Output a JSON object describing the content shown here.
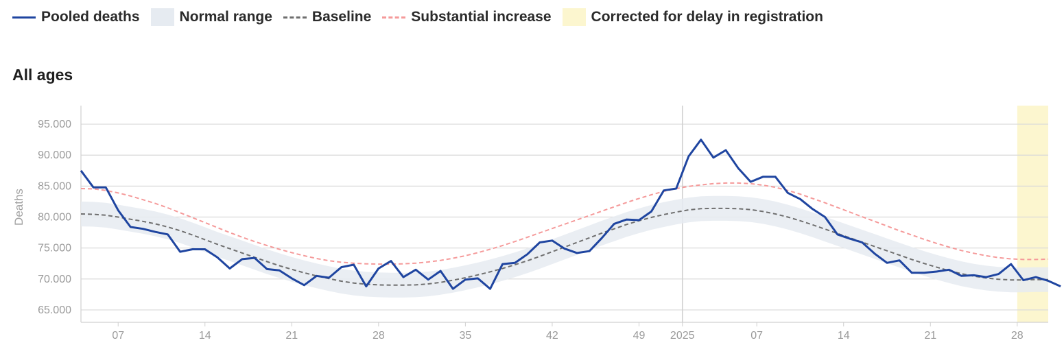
{
  "legend": {
    "pooled_deaths": "Pooled deaths",
    "normal_range": "Normal range",
    "baseline": "Baseline",
    "substantial_increase": "Substantial increase",
    "corrected": "Corrected for delay in registration"
  },
  "colors": {
    "pooled": "#1f45a0",
    "band": "#e6ebf1",
    "baseline": "#6f6f6f",
    "substantial": "#f59a9a",
    "corrected": "#fcf6cf",
    "grid": "#d9d9d9"
  },
  "subtitle": "All ages",
  "chart_data": {
    "type": "line",
    "title": "All ages",
    "xlabel": "",
    "ylabel": "Deaths",
    "ylim": [
      63000,
      98000
    ],
    "xlim": [
      0,
      78
    ],
    "y_ticks": [
      65000,
      70000,
      75000,
      80000,
      85000,
      90000,
      95000
    ],
    "y_tick_labels": [
      "65.000",
      "70.000",
      "75.000",
      "80.000",
      "85.000",
      "90.000",
      "95.000"
    ],
    "x_ticks": [
      {
        "x": 3,
        "label": "07"
      },
      {
        "x": 10,
        "label": "14"
      },
      {
        "x": 17,
        "label": "21"
      },
      {
        "x": 24,
        "label": "28"
      },
      {
        "x": 31,
        "label": "35"
      },
      {
        "x": 38,
        "label": "42"
      },
      {
        "x": 45,
        "label": "49"
      },
      {
        "x": 48.5,
        "label": "2025"
      },
      {
        "x": 54.5,
        "label": "07"
      },
      {
        "x": 61.5,
        "label": "14"
      },
      {
        "x": 68.5,
        "label": "21"
      },
      {
        "x": 75.5,
        "label": "28"
      }
    ],
    "year_line_x": 48.5,
    "corrected_range": [
      75.5,
      78.5
    ],
    "series": [
      {
        "name": "Pooled deaths",
        "values": [
          87500,
          84800,
          84800,
          81100,
          78400,
          78100,
          77600,
          77200,
          74400,
          74800,
          74800,
          73500,
          71700,
          73200,
          73400,
          71600,
          71400,
          70100,
          69000,
          70500,
          70200,
          71900,
          72300,
          68800,
          71700,
          72900,
          70300,
          71500,
          69900,
          71300,
          68400,
          69900,
          70100,
          68400,
          72400,
          72600,
          74000,
          75900,
          76200,
          74900,
          74200,
          74500,
          76600,
          78900,
          79600,
          79500,
          80900,
          84300,
          84600,
          89800,
          92500,
          89600,
          90800,
          87900,
          85700,
          86500,
          86500,
          83900,
          82900,
          81300,
          80000,
          77200,
          76500,
          75900,
          74100,
          72600,
          73000,
          71000,
          71000,
          71200,
          71500,
          70500,
          70600,
          70300,
          70800,
          72400,
          69800,
          70300,
          69700,
          68800
        ]
      },
      {
        "name": "Baseline",
        "values": [
          80500,
          80450,
          80300,
          80000,
          79650,
          79300,
          78900,
          78400,
          77800,
          77100,
          76350,
          75600,
          74900,
          74200,
          73500,
          72800,
          72150,
          71550,
          71000,
          70500,
          70050,
          69650,
          69350,
          69150,
          69050,
          69000,
          69000,
          69050,
          69200,
          69450,
          69800,
          70200,
          70650,
          71150,
          71700,
          72300,
          72950,
          73650,
          74400,
          75150,
          75900,
          76650,
          77400,
          78100,
          78800,
          79400,
          79950,
          80400,
          80800,
          81150,
          81350,
          81400,
          81400,
          81350,
          81200,
          80900,
          80500,
          80000,
          79400,
          78750,
          78050,
          77350,
          76650,
          75950,
          75250,
          74550,
          73850,
          73150,
          72500,
          71900,
          71350,
          70850,
          70450,
          70150,
          69950,
          69850,
          69850,
          69900,
          69900
        ]
      },
      {
        "name": "Normal range upper",
        "values": [
          82500,
          82450,
          82300,
          82000,
          81650,
          81300,
          80900,
          80400,
          79800,
          79100,
          78350,
          77600,
          76900,
          76200,
          75500,
          74800,
          74150,
          73550,
          73000,
          72500,
          72050,
          71650,
          71350,
          71150,
          71050,
          71000,
          71000,
          71050,
          71200,
          71450,
          71800,
          72200,
          72650,
          73150,
          73700,
          74300,
          74950,
          75650,
          76400,
          77150,
          77900,
          78650,
          79400,
          80100,
          80800,
          81400,
          81950,
          82400,
          82800,
          83150,
          83350,
          83400,
          83400,
          83350,
          83200,
          82900,
          82500,
          82000,
          81400,
          80750,
          80050,
          79350,
          78650,
          77950,
          77250,
          76550,
          75850,
          75150,
          74500,
          73900,
          73350,
          72850,
          72450,
          72150,
          71950,
          71850,
          71850,
          71900,
          71900
        ]
      },
      {
        "name": "Normal range lower",
        "values": [
          78500,
          78450,
          78300,
          78000,
          77650,
          77300,
          76900,
          76400,
          75800,
          75100,
          74350,
          73600,
          72900,
          72200,
          71500,
          70800,
          70150,
          69550,
          69000,
          68500,
          68050,
          67650,
          67350,
          67150,
          67050,
          67000,
          67000,
          67050,
          67200,
          67450,
          67800,
          68200,
          68650,
          69150,
          69700,
          70300,
          70950,
          71650,
          72400,
          73150,
          73900,
          74650,
          75400,
          76100,
          76800,
          77400,
          77950,
          78400,
          78800,
          79150,
          79350,
          79400,
          79400,
          79350,
          79200,
          78900,
          78500,
          78000,
          77400,
          76750,
          76050,
          75350,
          74650,
          73950,
          73250,
          72550,
          71850,
          71150,
          70500,
          69900,
          69350,
          68850,
          68450,
          68150,
          67950,
          67850,
          67850,
          67900,
          67900
        ]
      },
      {
        "name": "Substantial increase",
        "values": [
          84600,
          84550,
          84300,
          83900,
          83400,
          82800,
          82200,
          81500,
          80700,
          79900,
          79100,
          78300,
          77500,
          76750,
          76050,
          75400,
          74800,
          74250,
          73750,
          73300,
          72950,
          72700,
          72550,
          72450,
          72400,
          72400,
          72450,
          72550,
          72750,
          73000,
          73350,
          73750,
          74250,
          74800,
          75400,
          76050,
          76750,
          77450,
          78150,
          78850,
          79550,
          80250,
          80950,
          81650,
          82350,
          83000,
          83600,
          84150,
          84600,
          84950,
          85200,
          85400,
          85500,
          85500,
          85400,
          85150,
          84800,
          84300,
          83700,
          83000,
          82300,
          81550,
          80800,
          80050,
          79300,
          78550,
          77800,
          77100,
          76400,
          75750,
          75150,
          74600,
          74150,
          73750,
          73450,
          73250,
          73150,
          73150,
          73200
        ]
      }
    ]
  }
}
